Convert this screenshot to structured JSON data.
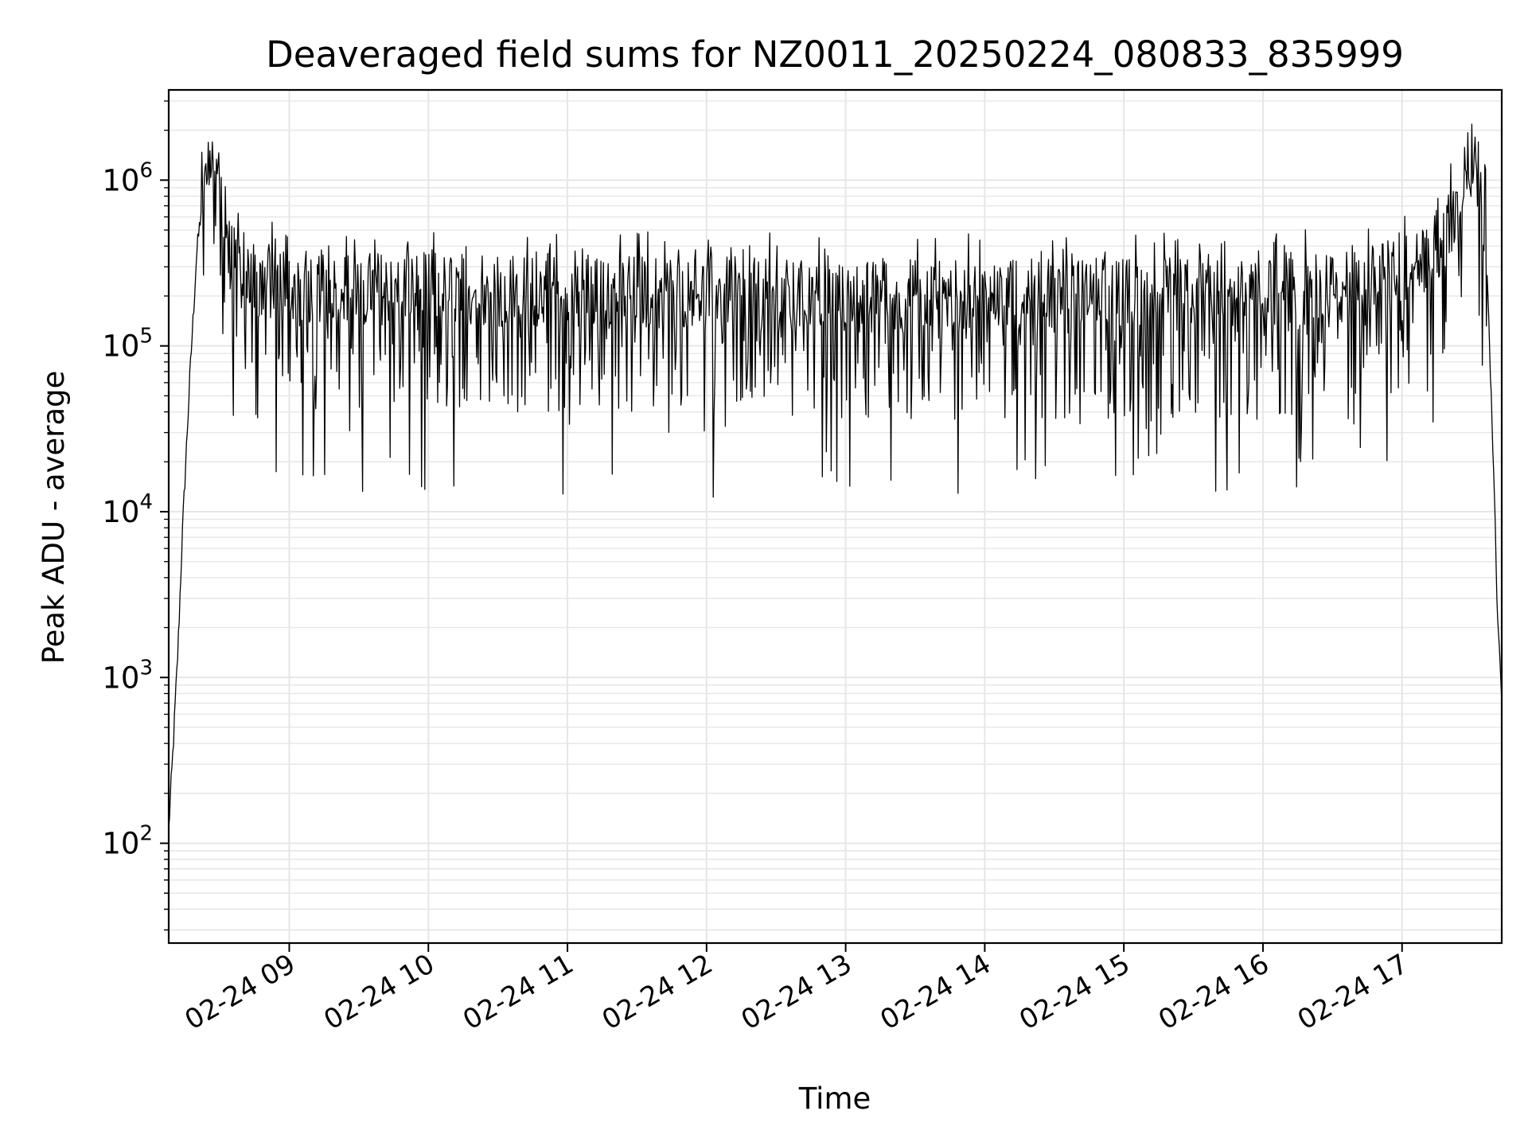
{
  "chart_data": {
    "type": "line",
    "title": "Deaveraged field sums for NZ0011_20250224_080833_835999",
    "xlabel": "Time",
    "ylabel": "Peak ADU - average",
    "y_scale": "log",
    "ylim": [
      25,
      3500000
    ],
    "xlim": [
      "2025-02-24 08:08",
      "2025-02-24 17:43"
    ],
    "grid": true,
    "line_color": "#000000",
    "grid_color": "#e6e6e6",
    "x_ticks": [
      {
        "t": "2025-02-24 09:00",
        "label": "02-24 09"
      },
      {
        "t": "2025-02-24 10:00",
        "label": "02-24 10"
      },
      {
        "t": "2025-02-24 11:00",
        "label": "02-24 11"
      },
      {
        "t": "2025-02-24 12:00",
        "label": "02-24 12"
      },
      {
        "t": "2025-02-24 13:00",
        "label": "02-24 13"
      },
      {
        "t": "2025-02-24 14:00",
        "label": "02-24 14"
      },
      {
        "t": "2025-02-24 15:00",
        "label": "02-24 15"
      },
      {
        "t": "2025-02-24 16:00",
        "label": "02-24 16"
      },
      {
        "t": "2025-02-24 17:00",
        "label": "02-24 17"
      }
    ],
    "y_ticks": [
      {
        "value": 100,
        "base": "10",
        "exp": "2"
      },
      {
        "value": 1000,
        "base": "10",
        "exp": "3"
      },
      {
        "value": 10000,
        "base": "10",
        "exp": "4"
      },
      {
        "value": 100000,
        "base": "10",
        "exp": "5"
      },
      {
        "value": 1000000,
        "base": "10",
        "exp": "6"
      }
    ],
    "series": [
      {
        "x": [
          "2025-02-24 08:08",
          "2025-02-24 08:10",
          "2025-02-24 08:12",
          "2025-02-24 08:14",
          "2025-02-24 08:17",
          "2025-02-24 08:20",
          "2025-02-24 08:23",
          "2025-02-24 08:26",
          "2025-02-24 08:29",
          "2025-02-24 08:31",
          "2025-02-24 08:33",
          "2025-02-24 08:36",
          "2025-02-24 08:40",
          "2025-02-24 08:45",
          "2025-02-24 08:50",
          "2025-02-24 09:00",
          "2025-02-24 10:00",
          "2025-02-24 11:00",
          "2025-02-24 12:00",
          "2025-02-24 12:30",
          "2025-02-24 13:00",
          "2025-02-24 14:00",
          "2025-02-24 15:00",
          "2025-02-24 16:00",
          "2025-02-24 16:30",
          "2025-02-24 16:50",
          "2025-02-24 17:05",
          "2025-02-24 17:15",
          "2025-02-24 17:23",
          "2025-02-24 17:28",
          "2025-02-24 17:33",
          "2025-02-24 17:36",
          "2025-02-24 17:39",
          "2025-02-24 17:41",
          "2025-02-24 17:43"
        ],
        "y": [
          120,
          400,
          1500,
          8000,
          60000,
          350000,
          900000,
          1300000,
          1100000,
          700000,
          500000,
          400000,
          300000,
          260000,
          240000,
          230000,
          220000,
          215000,
          210000,
          200000,
          195000,
          200000,
          205000,
          200000,
          215000,
          250000,
          300000,
          380000,
          600000,
          1200000,
          1400000,
          600000,
          30000,
          3000,
          700
        ]
      }
    ]
  }
}
